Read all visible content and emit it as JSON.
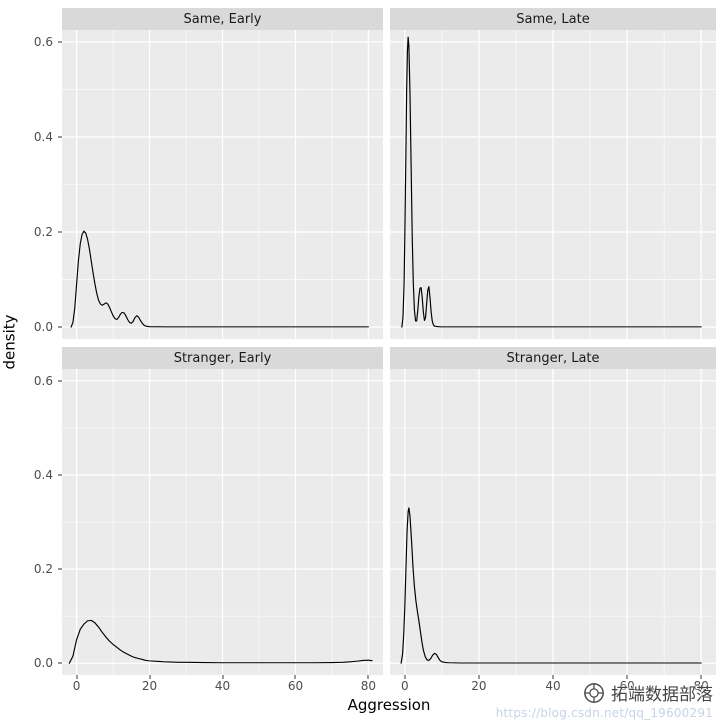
{
  "watermark": {
    "brand": "拓端数据部落",
    "url": "https://blog.csdn.net/qq_19600291"
  },
  "chart_data": {
    "type": "line",
    "subtype": "faceted-density-plot",
    "title": "",
    "xlabel": "Aggression",
    "ylabel": "density",
    "xlim": [
      -4,
      84
    ],
    "ylim": [
      -0.025,
      0.625
    ],
    "x_ticks": [
      0,
      20,
      40,
      60,
      80
    ],
    "x_tick_labels": [
      "0",
      "20",
      "40",
      "60",
      "80"
    ],
    "x_minor": [
      10,
      30,
      50,
      70
    ],
    "y_ticks": [
      0,
      0.2,
      0.4,
      0.6
    ],
    "y_tick_labels": [
      "0.0",
      "0.2",
      "0.4",
      "0.6"
    ],
    "y_minor": [
      0.1,
      0.3,
      0.5
    ],
    "grid": true,
    "legend": "none",
    "panel_bg": "#ebebeb",
    "strip_bg": "#d9d9d9",
    "grid_color": "#ffffff",
    "line_color": "#000000",
    "facets": [
      {
        "label": "Same, Early",
        "peak": {
          "x": 2,
          "y": 0.2
        },
        "points": [
          [
            -1.5,
            0
          ],
          [
            -1,
            0.01
          ],
          [
            -0.5,
            0.04
          ],
          [
            0,
            0.09
          ],
          [
            0.5,
            0.14
          ],
          [
            1,
            0.175
          ],
          [
            1.5,
            0.195
          ],
          [
            2,
            0.202
          ],
          [
            2.5,
            0.198
          ],
          [
            3,
            0.185
          ],
          [
            3.5,
            0.165
          ],
          [
            4,
            0.14
          ],
          [
            4.5,
            0.115
          ],
          [
            5,
            0.092
          ],
          [
            5.5,
            0.072
          ],
          [
            6,
            0.057
          ],
          [
            6.5,
            0.049
          ],
          [
            7,
            0.046
          ],
          [
            7.5,
            0.048
          ],
          [
            8,
            0.051
          ],
          [
            8.5,
            0.049
          ],
          [
            9,
            0.042
          ],
          [
            9.5,
            0.033
          ],
          [
            10,
            0.024
          ],
          [
            10.5,
            0.018
          ],
          [
            11,
            0.016
          ],
          [
            11.5,
            0.02
          ],
          [
            12,
            0.027
          ],
          [
            12.5,
            0.031
          ],
          [
            13,
            0.03
          ],
          [
            13.5,
            0.024
          ],
          [
            14,
            0.016
          ],
          [
            14.5,
            0.01
          ],
          [
            15,
            0.008
          ],
          [
            15.5,
            0.012
          ],
          [
            16,
            0.02
          ],
          [
            16.5,
            0.024
          ],
          [
            17,
            0.021
          ],
          [
            17.5,
            0.014
          ],
          [
            18,
            0.008
          ],
          [
            18.5,
            0.004
          ],
          [
            19,
            0.002
          ],
          [
            20,
            0.001
          ],
          [
            25,
            0.0005
          ],
          [
            30,
            0.0005
          ],
          [
            40,
            0.0005
          ],
          [
            50,
            0.0005
          ],
          [
            60,
            0.0005
          ],
          [
            70,
            0.0005
          ],
          [
            80,
            0.0005
          ]
        ]
      },
      {
        "label": "Same, Late",
        "peak": {
          "x": 0.9,
          "y": 0.61
        },
        "points": [
          [
            -0.8,
            0
          ],
          [
            -0.5,
            0.02
          ],
          [
            -0.2,
            0.09
          ],
          [
            0,
            0.19
          ],
          [
            0.3,
            0.37
          ],
          [
            0.5,
            0.5
          ],
          [
            0.7,
            0.58
          ],
          [
            0.9,
            0.61
          ],
          [
            1.1,
            0.59
          ],
          [
            1.4,
            0.49
          ],
          [
            1.7,
            0.34
          ],
          [
            2,
            0.19
          ],
          [
            2.3,
            0.09
          ],
          [
            2.6,
            0.035
          ],
          [
            2.9,
            0.013
          ],
          [
            3.2,
            0.013
          ],
          [
            3.5,
            0.035
          ],
          [
            3.8,
            0.065
          ],
          [
            4.1,
            0.082
          ],
          [
            4.4,
            0.083
          ],
          [
            4.7,
            0.062
          ],
          [
            5,
            0.032
          ],
          [
            5.3,
            0.014
          ],
          [
            5.6,
            0.02
          ],
          [
            5.9,
            0.05
          ],
          [
            6.2,
            0.078
          ],
          [
            6.5,
            0.085
          ],
          [
            6.8,
            0.062
          ],
          [
            7.1,
            0.032
          ],
          [
            7.4,
            0.013
          ],
          [
            7.7,
            0.005
          ],
          [
            8,
            0.002
          ],
          [
            9,
            0.001
          ],
          [
            10,
            0.0005
          ],
          [
            20,
            0.0005
          ],
          [
            40,
            0.0005
          ],
          [
            60,
            0.0005
          ],
          [
            80,
            0.0005
          ]
        ]
      },
      {
        "label": "Stranger, Early",
        "peak": {
          "x": 3.5,
          "y": 0.09
        },
        "points": [
          [
            -2,
            0
          ],
          [
            -1,
            0.015
          ],
          [
            0,
            0.05
          ],
          [
            1,
            0.072
          ],
          [
            2,
            0.083
          ],
          [
            3,
            0.09
          ],
          [
            4,
            0.091
          ],
          [
            5,
            0.086
          ],
          [
            6,
            0.077
          ],
          [
            7,
            0.066
          ],
          [
            8,
            0.056
          ],
          [
            9,
            0.047
          ],
          [
            10,
            0.04
          ],
          [
            11,
            0.034
          ],
          [
            12,
            0.028
          ],
          [
            13,
            0.023
          ],
          [
            14,
            0.019
          ],
          [
            15,
            0.015
          ],
          [
            16,
            0.012
          ],
          [
            17,
            0.01
          ],
          [
            18,
            0.008
          ],
          [
            19,
            0.006
          ],
          [
            20,
            0.005
          ],
          [
            22,
            0.004
          ],
          [
            24,
            0.003
          ],
          [
            26,
            0.0025
          ],
          [
            28,
            0.002
          ],
          [
            30,
            0.002
          ],
          [
            35,
            0.0015
          ],
          [
            40,
            0.001
          ],
          [
            50,
            0.001
          ],
          [
            60,
            0.001
          ],
          [
            65,
            0.001
          ],
          [
            70,
            0.0015
          ],
          [
            73,
            0.002
          ],
          [
            75,
            0.003
          ],
          [
            77,
            0.0045
          ],
          [
            78.5,
            0.006
          ],
          [
            80,
            0.0065
          ],
          [
            81,
            0.0055
          ]
        ]
      },
      {
        "label": "Stranger, Late",
        "peak": {
          "x": 1.1,
          "y": 0.33
        },
        "points": [
          [
            -1,
            0
          ],
          [
            -0.6,
            0.02
          ],
          [
            -0.3,
            0.06
          ],
          [
            0,
            0.12
          ],
          [
            0.3,
            0.2
          ],
          [
            0.6,
            0.28
          ],
          [
            0.9,
            0.322
          ],
          [
            1.1,
            0.33
          ],
          [
            1.4,
            0.312
          ],
          [
            1.8,
            0.262
          ],
          [
            2.2,
            0.205
          ],
          [
            2.6,
            0.162
          ],
          [
            3,
            0.132
          ],
          [
            3.4,
            0.11
          ],
          [
            3.8,
            0.09
          ],
          [
            4.2,
            0.068
          ],
          [
            4.6,
            0.046
          ],
          [
            5,
            0.028
          ],
          [
            5.5,
            0.014
          ],
          [
            6,
            0.007
          ],
          [
            6.5,
            0.006
          ],
          [
            7,
            0.01
          ],
          [
            7.5,
            0.017
          ],
          [
            8,
            0.021
          ],
          [
            8.5,
            0.019
          ],
          [
            9,
            0.012
          ],
          [
            9.5,
            0.006
          ],
          [
            10,
            0.003
          ],
          [
            11,
            0.0015
          ],
          [
            12,
            0.001
          ],
          [
            15,
            0.0005
          ],
          [
            20,
            0.0005
          ],
          [
            40,
            0.0005
          ],
          [
            60,
            0.0005
          ],
          [
            80,
            0.0005
          ]
        ]
      }
    ]
  }
}
